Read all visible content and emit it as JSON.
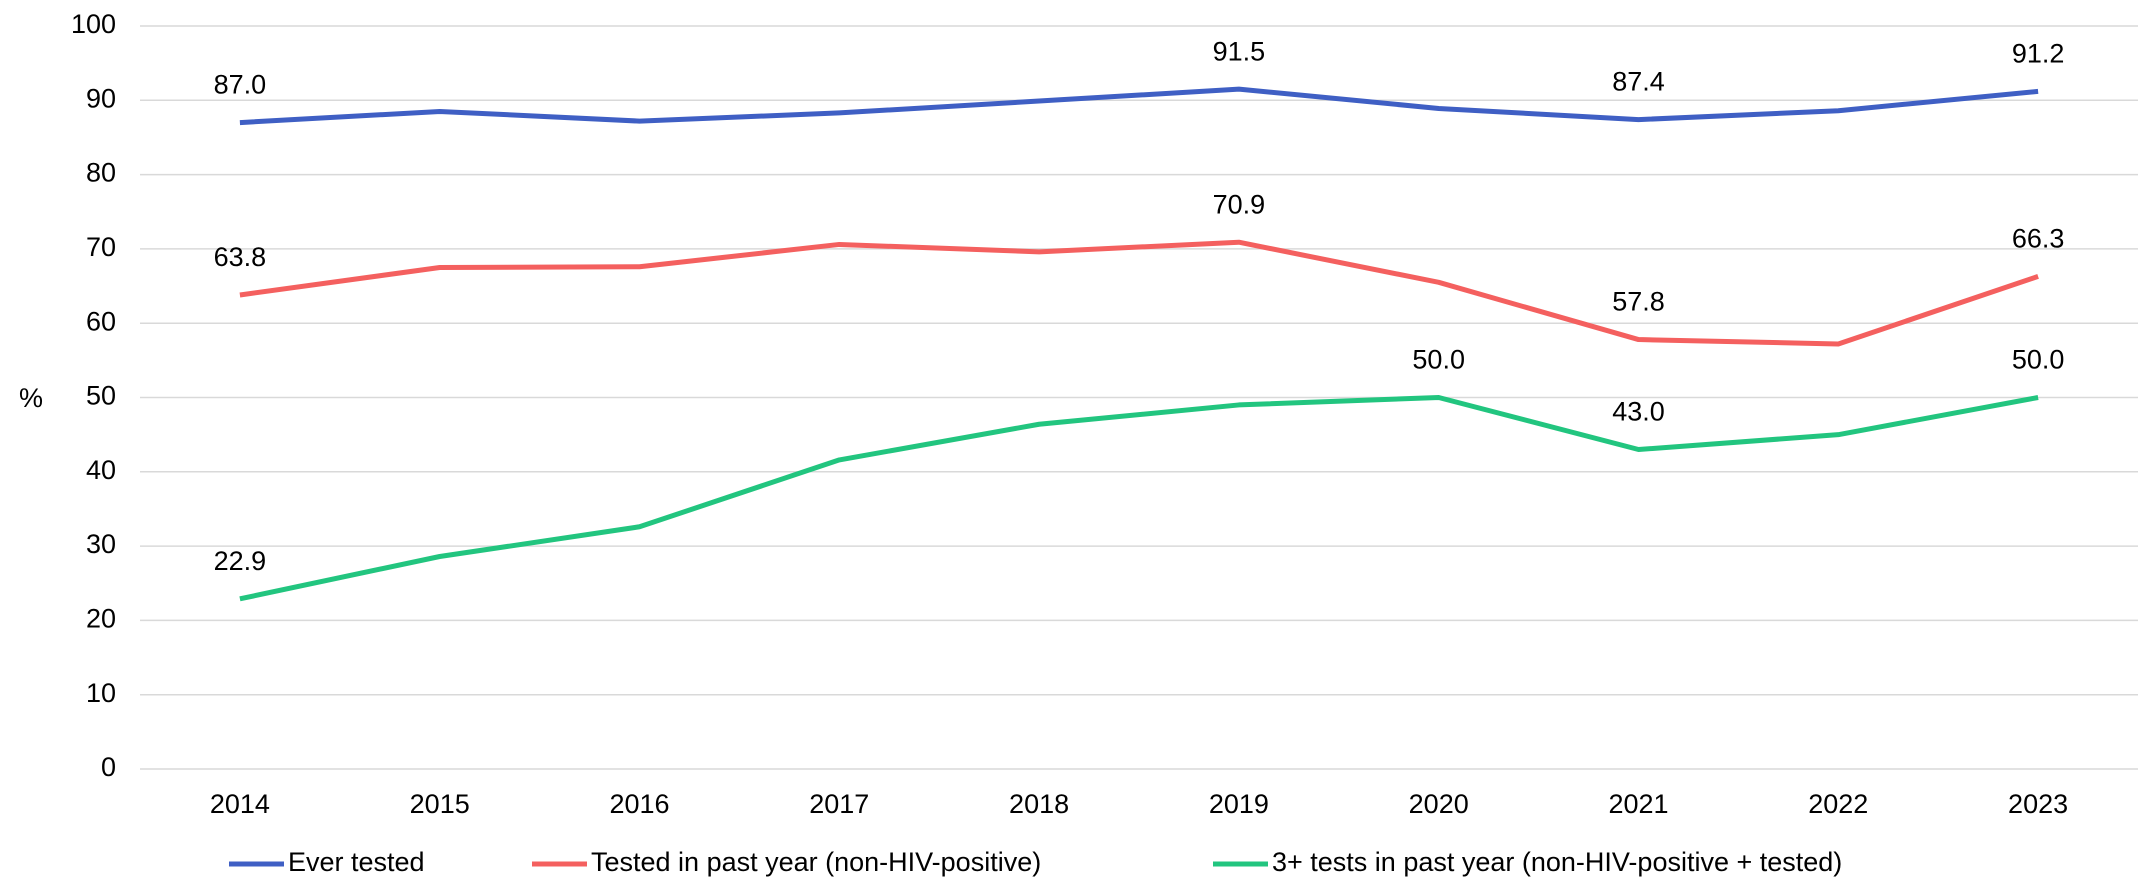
{
  "chart_data": {
    "type": "line",
    "y_label": "%",
    "categories": [
      "2014",
      "2015",
      "2016",
      "2017",
      "2018",
      "2019",
      "2020",
      "2021",
      "2022",
      "2023"
    ],
    "series": [
      {
        "name": "Ever tested",
        "color": "#3f5fc4",
        "values": [
          87.0,
          88.5,
          87.2,
          88.3,
          89.9,
          91.5,
          88.9,
          87.4,
          88.6,
          91.2
        ],
        "value_labels": [
          "87.0",
          null,
          null,
          null,
          null,
          "91.5",
          null,
          "87.4",
          null,
          "91.2"
        ]
      },
      {
        "name": "Tested in past year (non-HIV-positive)",
        "color": "#f4605f",
        "values": [
          63.8,
          67.5,
          67.6,
          70.6,
          69.6,
          70.9,
          65.5,
          57.8,
          57.2,
          66.3
        ],
        "value_labels": [
          "63.8",
          null,
          null,
          null,
          null,
          "70.9",
          null,
          "57.8",
          null,
          "66.3"
        ]
      },
      {
        "name": "3+ tests in past year (non-HIV-positive + tested)",
        "color": "#22c57f",
        "values": [
          22.9,
          28.6,
          32.6,
          41.6,
          46.4,
          49.0,
          50.0,
          43.0,
          45.0,
          50.0
        ],
        "value_labels": [
          "22.9",
          null,
          null,
          null,
          null,
          null,
          "50.0",
          "43.0",
          null,
          "50.0"
        ]
      }
    ],
    "ylim": [
      0,
      100
    ],
    "yticks": [
      0,
      10,
      20,
      30,
      40,
      50,
      60,
      70,
      80,
      90,
      100
    ],
    "grid": true,
    "legend": "bottom"
  }
}
